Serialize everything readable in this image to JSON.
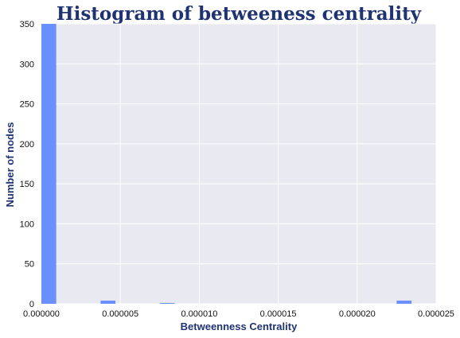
{
  "chart_data": {
    "type": "bar",
    "title": "Histogram of betweeness centrality",
    "xlabel": "Betweenness Centrality",
    "ylabel": "Number of nodes",
    "xlim": [
      0,
      2.5e-05
    ],
    "ylim": [
      0,
      350
    ],
    "xticks": [
      "0.000000",
      "0.000005",
      "0.000010",
      "0.000015",
      "0.000020",
      "0.000025"
    ],
    "yticks": [
      "0",
      "50",
      "100",
      "150",
      "200",
      "250",
      "300",
      "350"
    ],
    "grid": true,
    "colors": {
      "bar": "#6a8fff",
      "plot_bg": "#e9e9f1",
      "grid": "#ffffff",
      "title": "#1f3373"
    },
    "bins": [
      {
        "x0": 0.0,
        "x1": 9.4e-07,
        "count": 350
      },
      {
        "x0": 3.75e-06,
        "x1": 4.69e-06,
        "count": 4
      },
      {
        "x0": 7.5e-06,
        "x1": 8.44e-06,
        "count": 1
      },
      {
        "x0": 2.25e-05,
        "x1": 2.344e-05,
        "count": 4
      }
    ]
  }
}
